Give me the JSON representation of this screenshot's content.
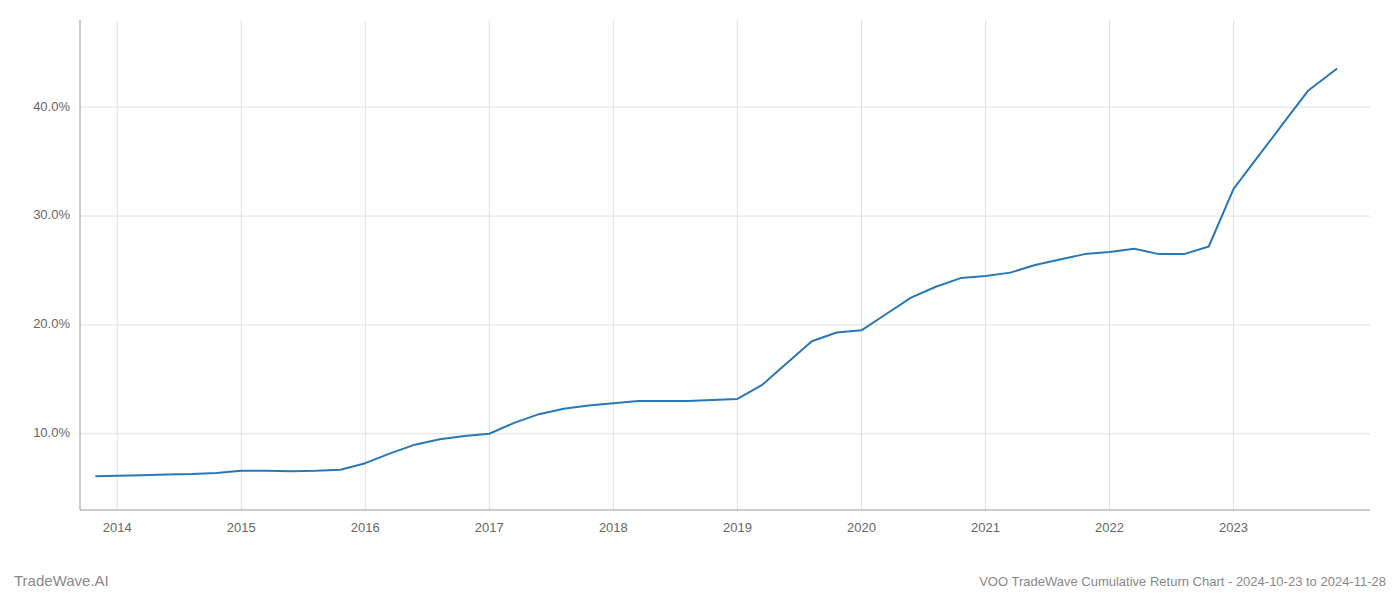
{
  "chart_data": {
    "type": "line",
    "title": "VOO TradeWave Cumulative Return Chart - 2024-10-23 to 2024-11-28",
    "annotations": [
      "TradeWave.AI"
    ],
    "x": [
      2013.83,
      2014.0,
      2014.2,
      2014.4,
      2014.6,
      2014.8,
      2015.0,
      2015.2,
      2015.4,
      2015.6,
      2015.8,
      2016.0,
      2016.2,
      2016.4,
      2016.6,
      2016.8,
      2017.0,
      2017.2,
      2017.4,
      2017.6,
      2017.8,
      2018.0,
      2018.2,
      2018.4,
      2018.6,
      2018.8,
      2019.0,
      2019.2,
      2019.4,
      2019.6,
      2019.8,
      2020.0,
      2020.2,
      2020.4,
      2020.6,
      2020.8,
      2021.0,
      2021.2,
      2021.4,
      2021.6,
      2021.8,
      2022.0,
      2022.2,
      2022.4,
      2022.6,
      2022.8,
      2023.0,
      2023.2,
      2023.4,
      2023.6,
      2023.83
    ],
    "values": [
      6.1,
      6.15,
      6.2,
      6.25,
      6.3,
      6.4,
      6.6,
      6.6,
      6.55,
      6.6,
      6.7,
      7.3,
      8.2,
      9.0,
      9.5,
      9.8,
      10.0,
      11.0,
      11.8,
      12.3,
      12.6,
      12.8,
      13.0,
      13.0,
      13.0,
      13.1,
      13.2,
      14.5,
      16.5,
      18.5,
      19.3,
      19.5,
      21.0,
      22.5,
      23.5,
      24.3,
      24.5,
      24.8,
      25.5,
      26.0,
      26.5,
      26.7,
      27.0,
      26.5,
      26.5,
      27.2,
      32.5,
      35.5,
      38.5,
      41.5,
      43.5
    ],
    "color": "#2878b5",
    "xlim": [
      2013.7,
      2024.1
    ],
    "xticks": [
      2014,
      2015,
      2016,
      2017,
      2018,
      2019,
      2020,
      2021,
      2022,
      2023
    ],
    "ylim": [
      3,
      48
    ],
    "yticks": [
      {
        "value": 10,
        "label": "10.0%"
      },
      {
        "value": 20,
        "label": "20.0%"
      },
      {
        "value": 30,
        "label": "30.0%"
      },
      {
        "value": 40,
        "label": "40.0%"
      }
    ],
    "grid": true
  }
}
